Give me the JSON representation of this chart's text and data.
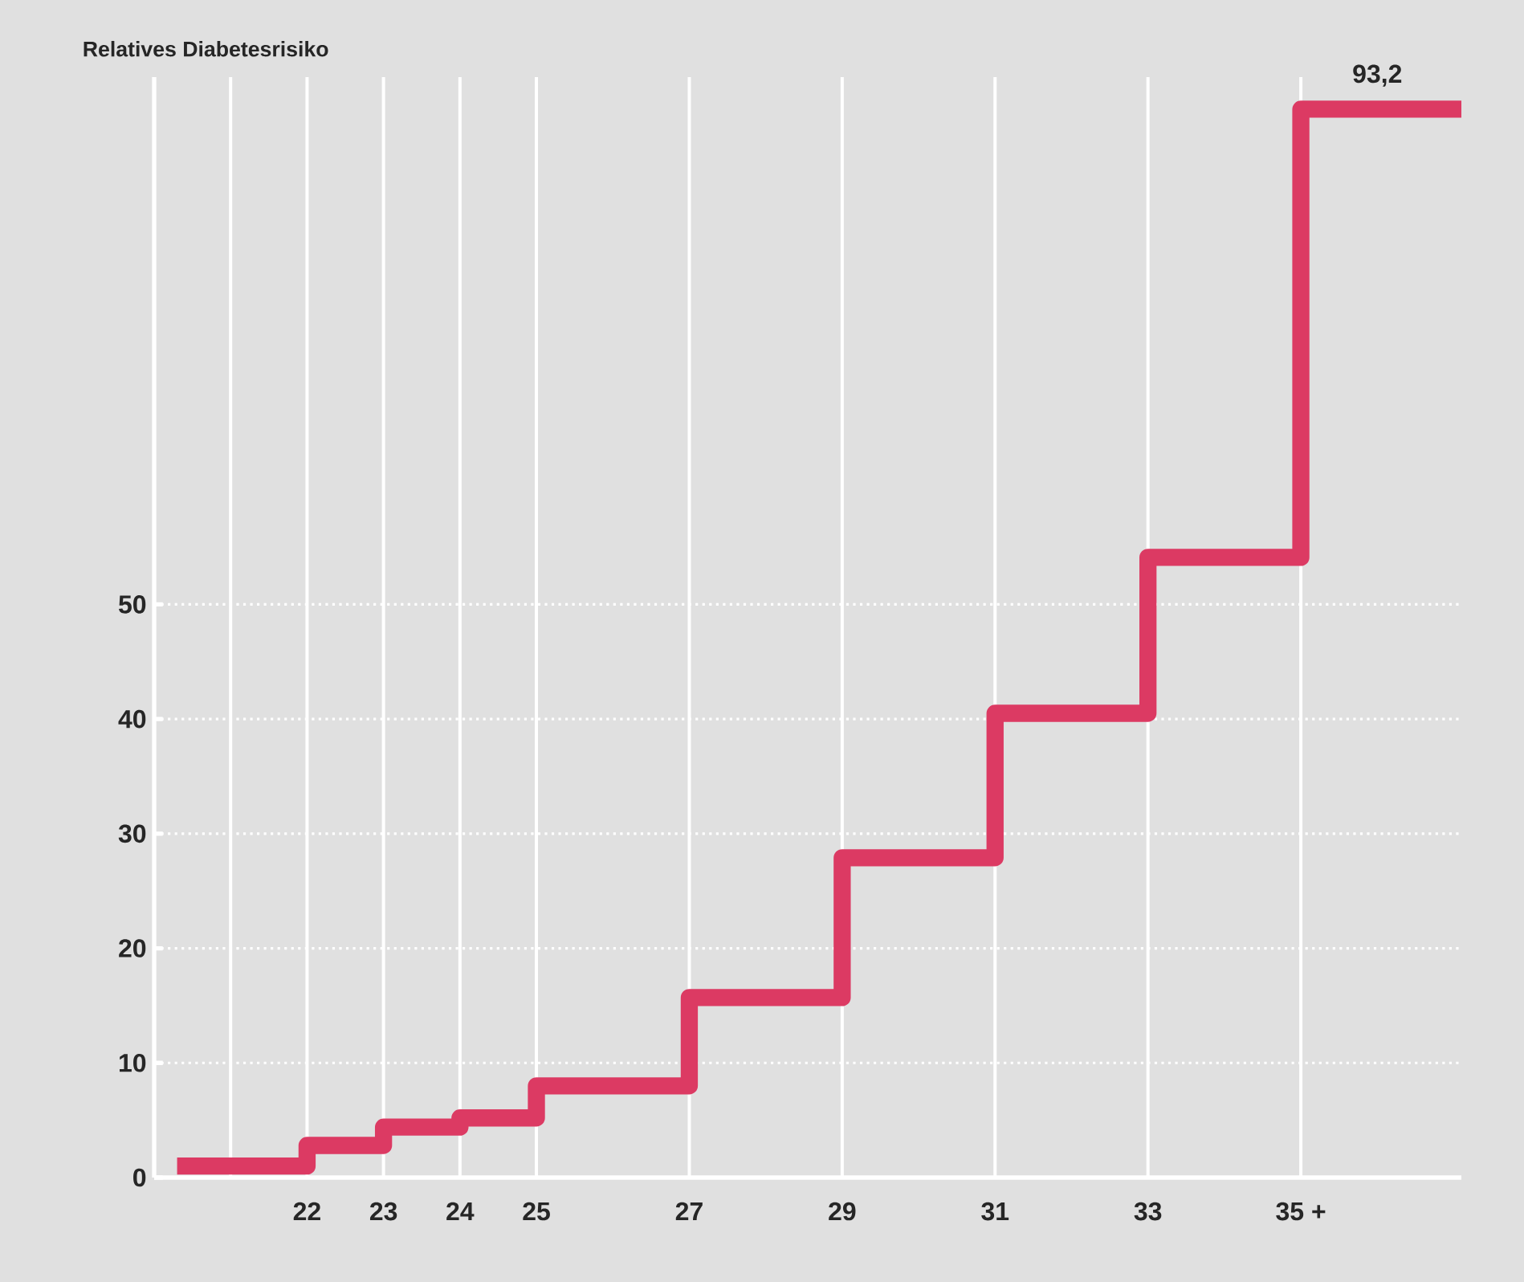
{
  "chart_data": {
    "type": "step",
    "ylabel": "Relatives Diabetesrisiko",
    "x": [
      20.3,
      22,
      23,
      24,
      25,
      27,
      29,
      31,
      33,
      35,
      37.1
    ],
    "values": [
      1.0,
      2.8,
      4.4,
      5.2,
      8.0,
      15.7,
      27.9,
      40.5,
      54.1,
      93.2,
      93.2
    ],
    "color": "#dc3a63",
    "xlim": [
      20,
      37.1
    ],
    "xticks": [
      {
        "value": 21,
        "label": null
      },
      22,
      23,
      24,
      25,
      27,
      29,
      31,
      33,
      {
        "value": 35,
        "label": "35 +"
      }
    ],
    "ylim": [
      0,
      96
    ],
    "yticks": [
      0,
      10,
      20,
      30,
      40,
      50
    ],
    "grid": true,
    "marker": "none",
    "line_style": "solid",
    "annotations": [
      {
        "text": "93,2",
        "x": 36,
        "y": 93.2
      }
    ]
  }
}
